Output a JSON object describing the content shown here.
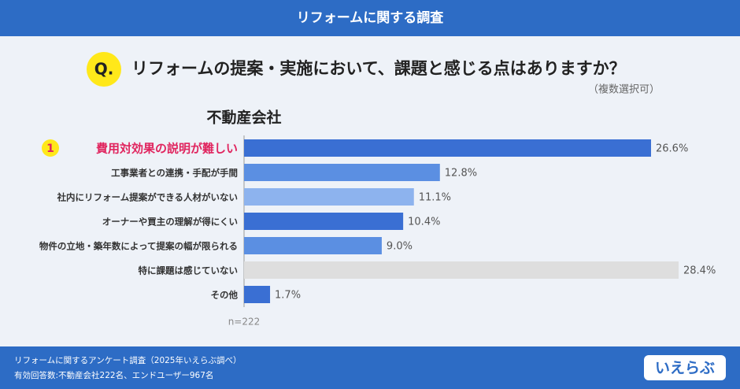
{
  "header": {
    "title": "リフォームに関する調査"
  },
  "question": {
    "mark": "Q.",
    "text": "リフォームの提案・実施において、課題と感じる点はありますか？",
    "note": "（複数選択可）"
  },
  "chart_data": {
    "type": "bar",
    "orientation": "horizontal",
    "title": "不動産会社",
    "categories": [
      "費用対効果の説明が難しい",
      "工事業者との連携・手配が手間",
      "社内にリフォーム提案ができる人材がいない",
      "オーナーや買主の理解が得にくい",
      "物件の立地・築年数によって提案の幅が限られる",
      "特に課題は感じていない",
      "その他"
    ],
    "values": [
      26.6,
      12.8,
      11.1,
      10.4,
      9.0,
      28.4,
      1.7
    ],
    "value_labels": [
      "26.6%",
      "12.8%",
      "11.1%",
      "10.4%",
      "9.0%",
      "28.4%",
      "1.7%"
    ],
    "colors": [
      "#3a6fd3",
      "#5b8fe2",
      "#8db3ee",
      "#3a6fd3",
      "#5b8fe2",
      "#dedede",
      "#3a6fd3"
    ],
    "highlight": {
      "rank": "1",
      "color": "#e0245e"
    },
    "sample": "n=222"
  },
  "footer": {
    "lines": [
      "リフォームに関するアンケート調査（2025年いえらぶ調べ）",
      "有効回答数:不動産会社222名、エンドユーザー967名"
    ],
    "logo": "いえらぶ"
  }
}
